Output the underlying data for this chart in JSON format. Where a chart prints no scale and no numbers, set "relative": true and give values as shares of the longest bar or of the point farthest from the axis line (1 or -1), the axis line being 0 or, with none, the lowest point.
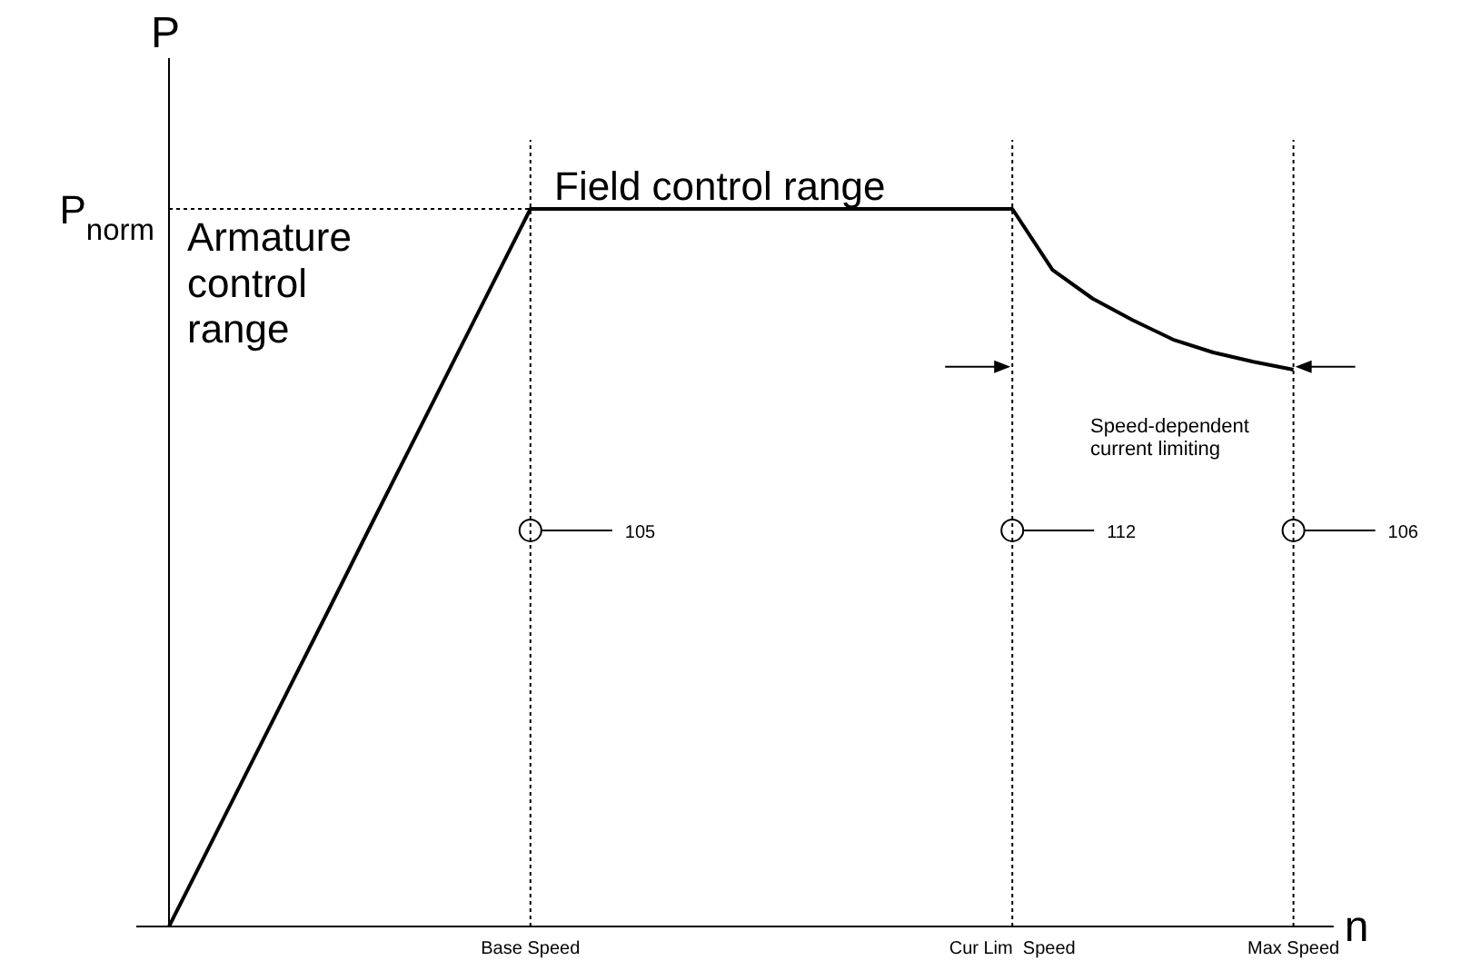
{
  "chart_data": {
    "type": "line",
    "relative": true,
    "xlabel": "n",
    "ylabel": "P",
    "categories": [
      null,
      null,
      null,
      null,
      null,
      null,
      null,
      null,
      null,
      "Base Speed",
      null,
      null,
      null,
      null,
      null,
      null,
      null,
      null,
      null,
      null,
      null,
      "Cur Lim  Speed",
      null,
      null,
      null,
      null,
      null,
      null,
      "Max Speed",
      null
    ],
    "series": [
      {
        "color": "#000000",
        "values": [
          0,
          0.111,
          0.222,
          0.333,
          0.444,
          0.556,
          0.667,
          0.778,
          0.889,
          1,
          1,
          1,
          1,
          1,
          1,
          1,
          1,
          1,
          1,
          1,
          1,
          1,
          0.915,
          0.875,
          0.845,
          0.818,
          0.8,
          0.787,
          0.776,
          null
        ]
      }
    ],
    "ref_lines": [
      {
        "axis": "y",
        "value": 1,
        "label": "P$_{norm}$",
        "line_style": "dotted"
      },
      {
        "axis": "x",
        "value": "Base Speed",
        "line_style": "dotted"
      },
      {
        "axis": "x",
        "value": "Cur Lim  Speed",
        "line_style": "dotted"
      },
      {
        "axis": "x",
        "value": "Max Speed",
        "line_style": "dotted"
      }
    ],
    "annotations": [
      "Armature control range",
      "Field control range",
      "Speed-dependent current limiting",
      "105",
      "112",
      "106"
    ],
    "line_style": "solid"
  }
}
